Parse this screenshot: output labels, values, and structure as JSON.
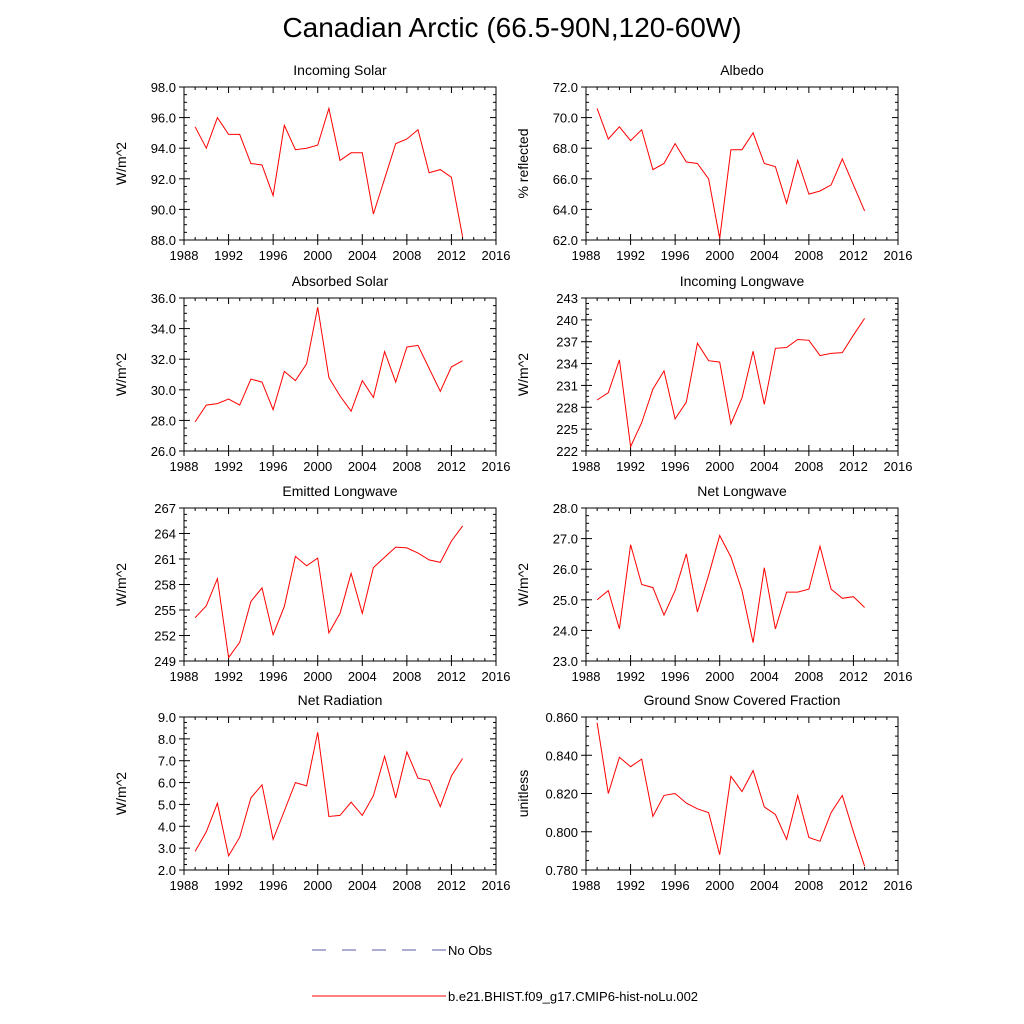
{
  "title": "Canadian Arctic (66.5-90N,120-60W)",
  "x_axis": {
    "min": 1988,
    "max": 2016,
    "ticks": [
      1988,
      1992,
      1996,
      2000,
      2004,
      2008,
      2012,
      2016
    ]
  },
  "series_color": "#ff0000",
  "obs_color": "#5a5aa8",
  "legend": [
    {
      "label": "No Obs",
      "style": "dashed"
    },
    {
      "label": "b.e21.BHIST.f09_g17.CMIP6-hist-noLu.002",
      "style": "solid"
    }
  ],
  "chart_data": [
    {
      "type": "line",
      "title": "Incoming Solar",
      "ylabel": "W/m^2",
      "ylim": [
        88,
        98
      ],
      "yticks": [
        "88.0",
        "90.0",
        "92.0",
        "94.0",
        "96.0",
        "98.0"
      ],
      "x": [
        1989,
        1990,
        1991,
        1992,
        1993,
        1994,
        1995,
        1996,
        1997,
        1998,
        1999,
        2000,
        2001,
        2002,
        2003,
        2004,
        2005,
        2006,
        2007,
        2008,
        2009,
        2010,
        2011,
        2012,
        2013
      ],
      "values": [
        95.4,
        94.0,
        96.0,
        94.9,
        94.9,
        93.0,
        92.9,
        90.9,
        95.5,
        93.9,
        94.0,
        94.2,
        96.6,
        93.2,
        93.7,
        93.7,
        89.7,
        92.0,
        94.3,
        94.6,
        95.2,
        92.4,
        92.6,
        92.1,
        88.2
      ]
    },
    {
      "type": "line",
      "title": "Albedo",
      "ylabel": "% reflected",
      "ylim": [
        62,
        72
      ],
      "yticks": [
        "62.0",
        "64.0",
        "66.0",
        "68.0",
        "70.0",
        "72.0"
      ],
      "x": [
        1989,
        1990,
        1991,
        1992,
        1993,
        1994,
        1995,
        1996,
        1997,
        1998,
        1999,
        2000,
        2001,
        2002,
        2003,
        2004,
        2005,
        2006,
        2007,
        2008,
        2009,
        2010,
        2011,
        2012,
        2013
      ],
      "values": [
        70.6,
        68.6,
        69.4,
        68.5,
        69.2,
        66.6,
        67.0,
        68.3,
        67.1,
        67.0,
        66.0,
        62.1,
        67.9,
        67.9,
        69.0,
        67.0,
        66.8,
        64.4,
        67.2,
        65.0,
        65.2,
        65.6,
        67.3,
        65.6,
        63.9
      ]
    },
    {
      "type": "line",
      "title": "Absorbed Solar",
      "ylabel": "W/m^2",
      "ylim": [
        26,
        36
      ],
      "yticks": [
        "26.0",
        "28.0",
        "30.0",
        "32.0",
        "34.0",
        "36.0"
      ],
      "x": [
        1989,
        1990,
        1991,
        1992,
        1993,
        1994,
        1995,
        1996,
        1997,
        1998,
        1999,
        2000,
        2001,
        2002,
        2003,
        2004,
        2005,
        2006,
        2007,
        2008,
        2009,
        2010,
        2011,
        2012,
        2013
      ],
      "values": [
        27.9,
        29.0,
        29.1,
        29.4,
        29.0,
        30.7,
        30.5,
        28.7,
        31.2,
        30.6,
        31.7,
        35.4,
        30.8,
        29.6,
        28.6,
        30.6,
        29.5,
        32.5,
        30.5,
        32.8,
        32.9,
        31.4,
        29.9,
        31.5,
        31.9
      ]
    },
    {
      "type": "line",
      "title": "Incoming Longwave",
      "ylabel": "W/m^2",
      "ylim": [
        222,
        243
      ],
      "yticks": [
        "222",
        "225",
        "228",
        "231",
        "234",
        "237",
        "240",
        "243"
      ],
      "x": [
        1989,
        1990,
        1991,
        1992,
        1993,
        1994,
        1995,
        1996,
        1997,
        1998,
        1999,
        2000,
        2001,
        2002,
        2003,
        2004,
        2005,
        2006,
        2007,
        2008,
        2009,
        2010,
        2011,
        2012,
        2013
      ],
      "values": [
        229.0,
        230.0,
        234.5,
        222.6,
        225.9,
        230.5,
        233.0,
        226.4,
        228.7,
        236.8,
        234.4,
        234.2,
        225.7,
        229.3,
        235.7,
        228.4,
        236.1,
        236.2,
        237.3,
        237.2,
        235.1,
        235.4,
        235.5,
        237.9,
        240.2
      ]
    },
    {
      "type": "line",
      "title": "Emitted Longwave",
      "ylabel": "W/m^2",
      "ylim": [
        249,
        267
      ],
      "yticks": [
        "249",
        "252",
        "255",
        "258",
        "261",
        "264",
        "267"
      ],
      "x": [
        1989,
        1990,
        1991,
        1992,
        1993,
        1994,
        1995,
        1996,
        1997,
        1998,
        1999,
        2000,
        2001,
        2002,
        2003,
        2004,
        2005,
        2006,
        2007,
        2008,
        2009,
        2010,
        2011,
        2012,
        2013
      ],
      "values": [
        254.1,
        255.5,
        258.7,
        249.4,
        251.2,
        256.0,
        257.6,
        252.1,
        255.4,
        261.3,
        260.2,
        261.1,
        252.3,
        254.6,
        259.3,
        254.6,
        260.0,
        261.2,
        262.4,
        262.3,
        261.7,
        260.9,
        260.6,
        263.1,
        264.9
      ]
    },
    {
      "type": "line",
      "title": "Net Longwave",
      "ylabel": "W/m^2",
      "ylim": [
        23,
        28
      ],
      "yticks": [
        "23.0",
        "24.0",
        "25.0",
        "26.0",
        "27.0",
        "28.0"
      ],
      "x": [
        1989,
        1990,
        1991,
        1992,
        1993,
        1994,
        1995,
        1996,
        1997,
        1998,
        1999,
        2000,
        2001,
        2002,
        2003,
        2004,
        2005,
        2006,
        2007,
        2008,
        2009,
        2010,
        2011,
        2012,
        2013
      ],
      "values": [
        25.0,
        25.3,
        24.05,
        26.8,
        25.5,
        25.4,
        24.5,
        25.3,
        26.5,
        24.6,
        25.8,
        27.1,
        26.4,
        25.3,
        23.6,
        26.05,
        24.05,
        25.25,
        25.25,
        25.35,
        26.75,
        25.35,
        25.05,
        25.1,
        24.75
      ]
    },
    {
      "type": "line",
      "title": "Net Radiation",
      "ylabel": "W/m^2",
      "ylim": [
        2,
        9
      ],
      "yticks": [
        "2.0",
        "3.0",
        "4.0",
        "5.0",
        "6.0",
        "7.0",
        "8.0",
        "9.0"
      ],
      "x": [
        1989,
        1990,
        1991,
        1992,
        1993,
        1994,
        1995,
        1996,
        1997,
        1998,
        1999,
        2000,
        2001,
        2002,
        2003,
        2004,
        2005,
        2006,
        2007,
        2008,
        2009,
        2010,
        2011,
        2012,
        2013
      ],
      "values": [
        2.85,
        3.75,
        5.05,
        2.65,
        3.5,
        5.3,
        5.9,
        3.4,
        4.7,
        6.0,
        5.85,
        8.3,
        4.45,
        4.5,
        5.1,
        4.5,
        5.4,
        7.2,
        5.3,
        7.4,
        6.2,
        6.1,
        4.9,
        6.3,
        7.1
      ]
    },
    {
      "type": "line",
      "title": "Ground Snow Covered Fraction",
      "ylabel": "unitless",
      "ylim": [
        0.78,
        0.86
      ],
      "yticks": [
        "0.780",
        "0.800",
        "0.820",
        "0.840",
        "0.860"
      ],
      "x": [
        1989,
        1990,
        1991,
        1992,
        1993,
        1994,
        1995,
        1996,
        1997,
        1998,
        1999,
        2000,
        2001,
        2002,
        2003,
        2004,
        2005,
        2006,
        2007,
        2008,
        2009,
        2010,
        2011,
        2012,
        2013
      ],
      "values": [
        0.857,
        0.82,
        0.839,
        0.834,
        0.838,
        0.808,
        0.819,
        0.82,
        0.815,
        0.812,
        0.81,
        0.788,
        0.829,
        0.821,
        0.832,
        0.813,
        0.809,
        0.796,
        0.819,
        0.797,
        0.795,
        0.81,
        0.819,
        0.8,
        0.782
      ]
    }
  ]
}
